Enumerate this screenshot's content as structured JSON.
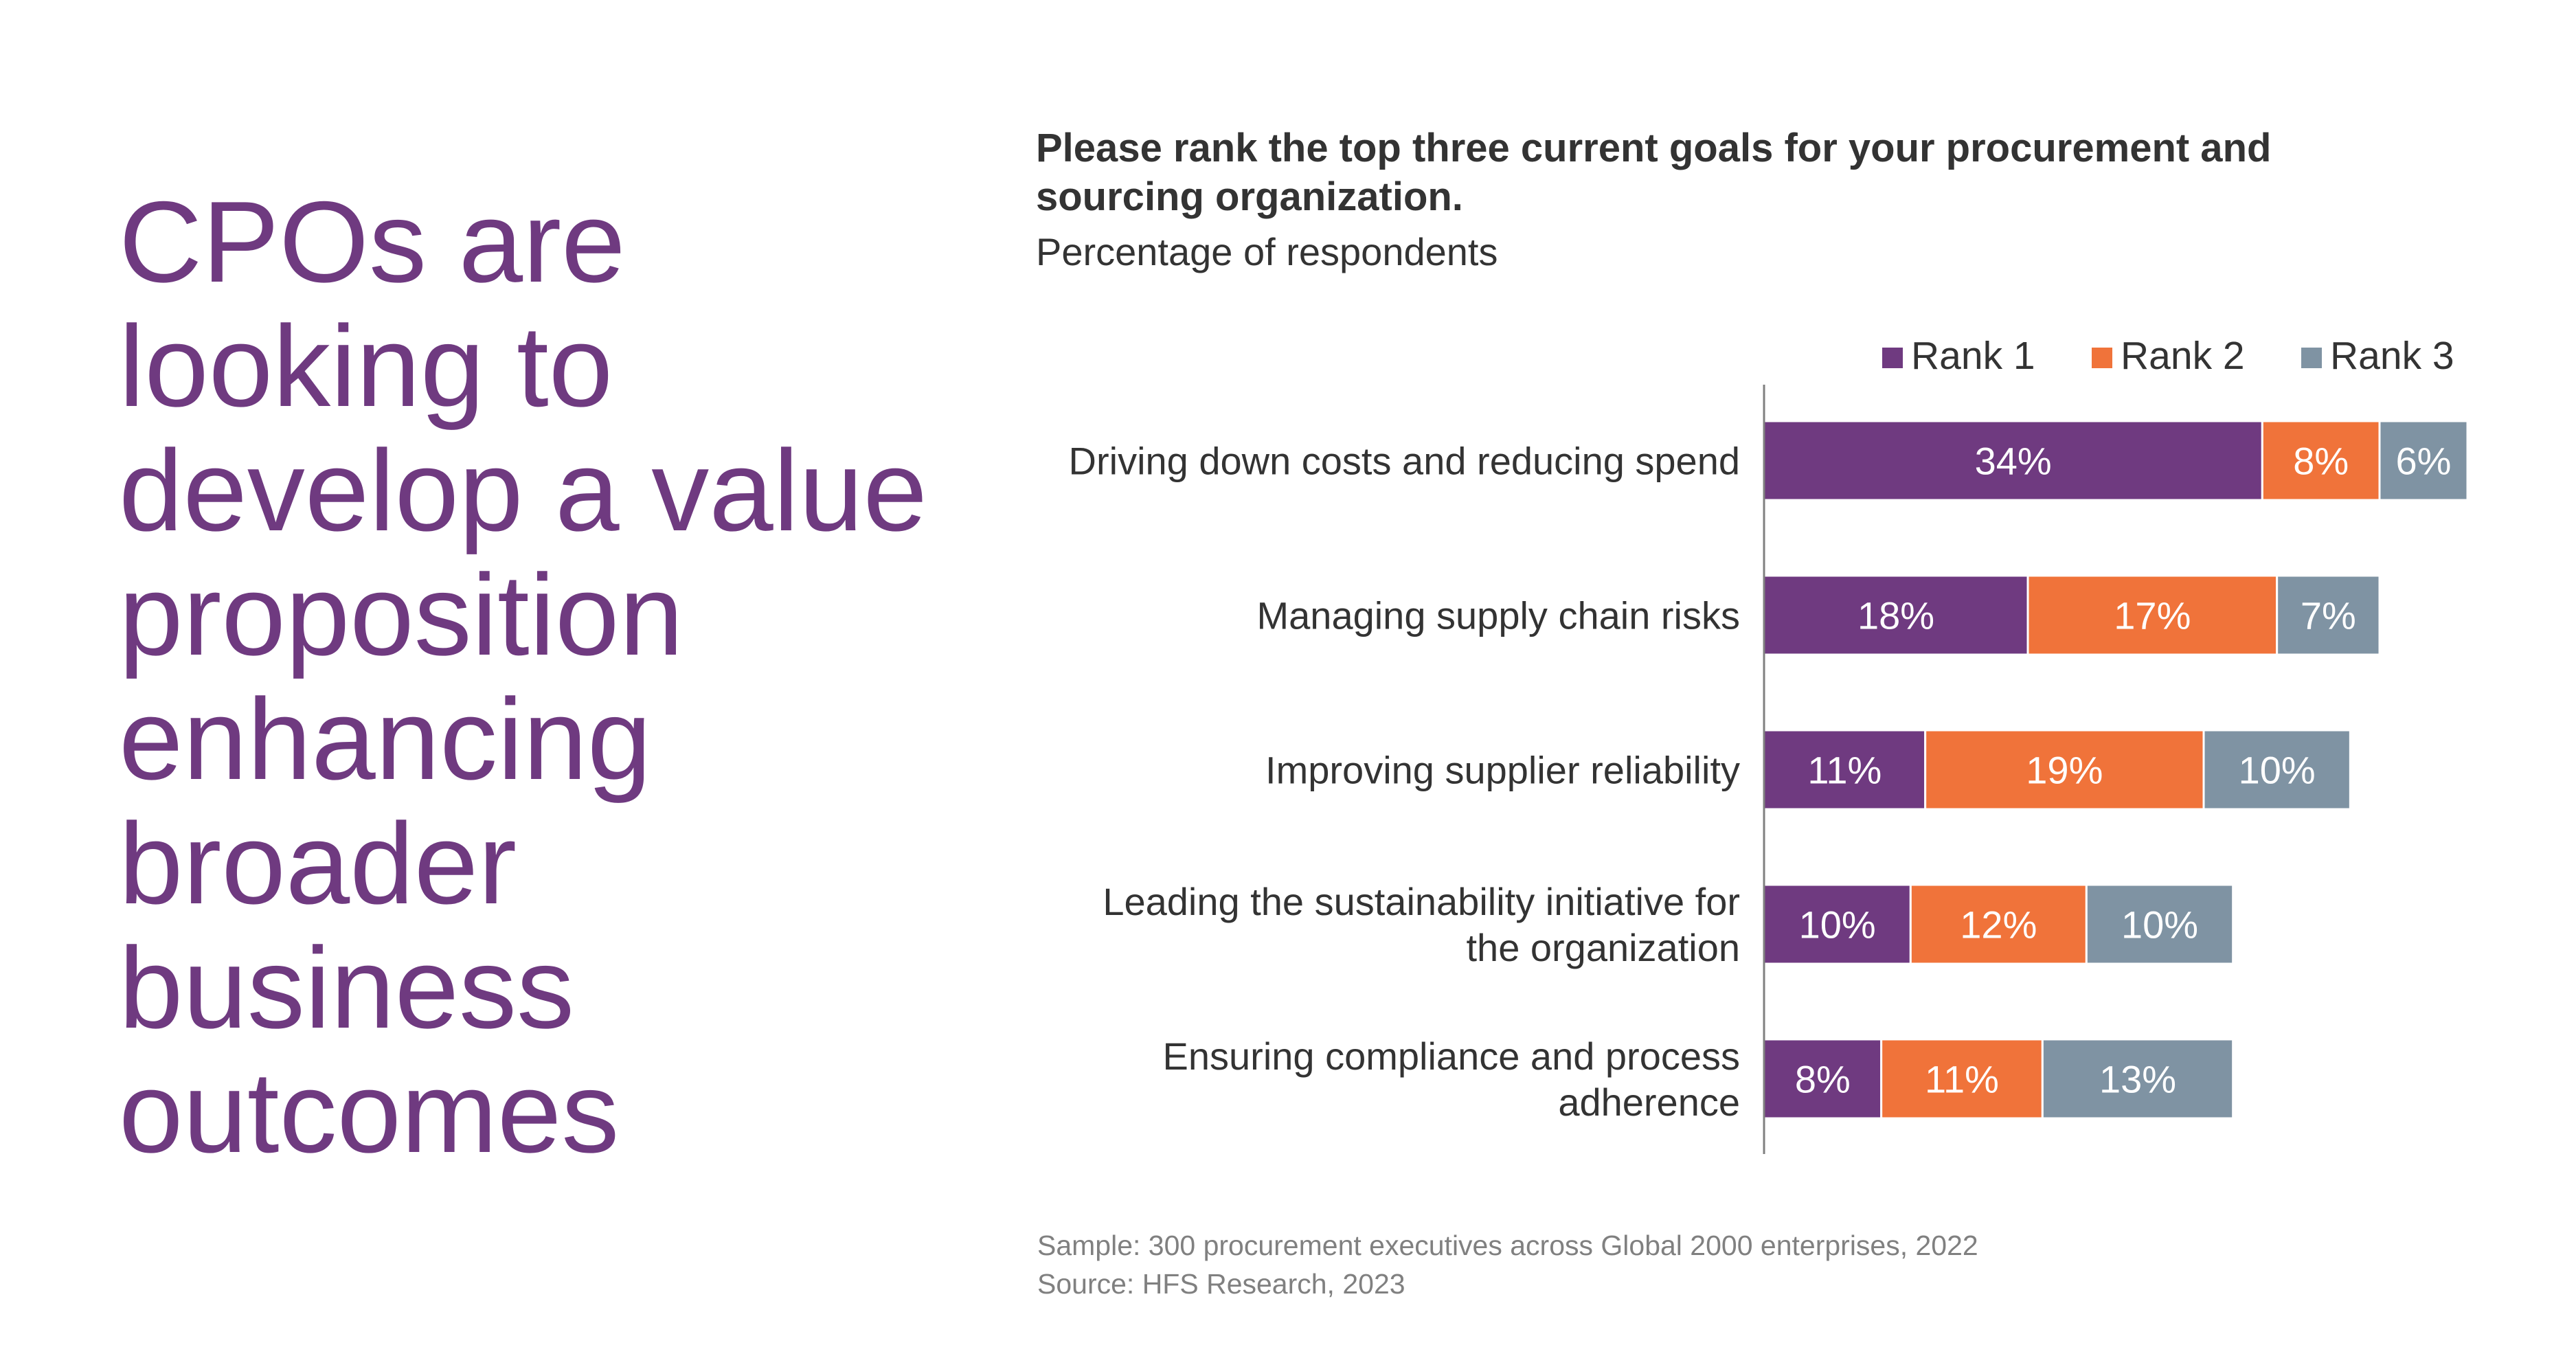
{
  "headline": {
    "lines": [
      "CPOs are",
      "looking to",
      "develop a value",
      "proposition",
      "enhancing",
      "broader",
      "business",
      "outcomes"
    ]
  },
  "question": {
    "title": "Please rank the top three current goals for your procurement and sourcing organization.",
    "subtitle": "Percentage of respondents"
  },
  "chart_data": {
    "type": "bar",
    "orientation": "horizontal",
    "stacked": true,
    "categories": [
      [
        "Driving down costs and reducing spend"
      ],
      [
        "Managing supply chain risks"
      ],
      [
        "Improving supplier reliability"
      ],
      [
        "Leading the sustainability initiative for",
        "the organization"
      ],
      [
        "Ensuring compliance and process",
        "adherence"
      ]
    ],
    "series": [
      {
        "name": "Rank 1",
        "color": "#6f3a80",
        "values": [
          34,
          18,
          11,
          10,
          8
        ],
        "labels": [
          "34%",
          "18%",
          "11%",
          "10%",
          "8%"
        ]
      },
      {
        "name": "Rank 2",
        "color": "#f0733a",
        "values": [
          8,
          17,
          19,
          12,
          11
        ],
        "labels": [
          "8%",
          "17%",
          "19%",
          "12%",
          "11%"
        ]
      },
      {
        "name": "Rank 3",
        "color": "#7f93a3",
        "values": [
          6,
          7,
          10,
          10,
          13
        ],
        "labels": [
          "6%",
          "7%",
          "10%",
          "10%",
          "13%"
        ]
      }
    ],
    "xlim": [
      0,
      48
    ],
    "grid": false,
    "legend": "top-right"
  },
  "footnotes": {
    "sample": "Sample: 300 procurement executives across Global 2000 enterprises, 2022",
    "source": "Source: HFS Research, 2023"
  }
}
